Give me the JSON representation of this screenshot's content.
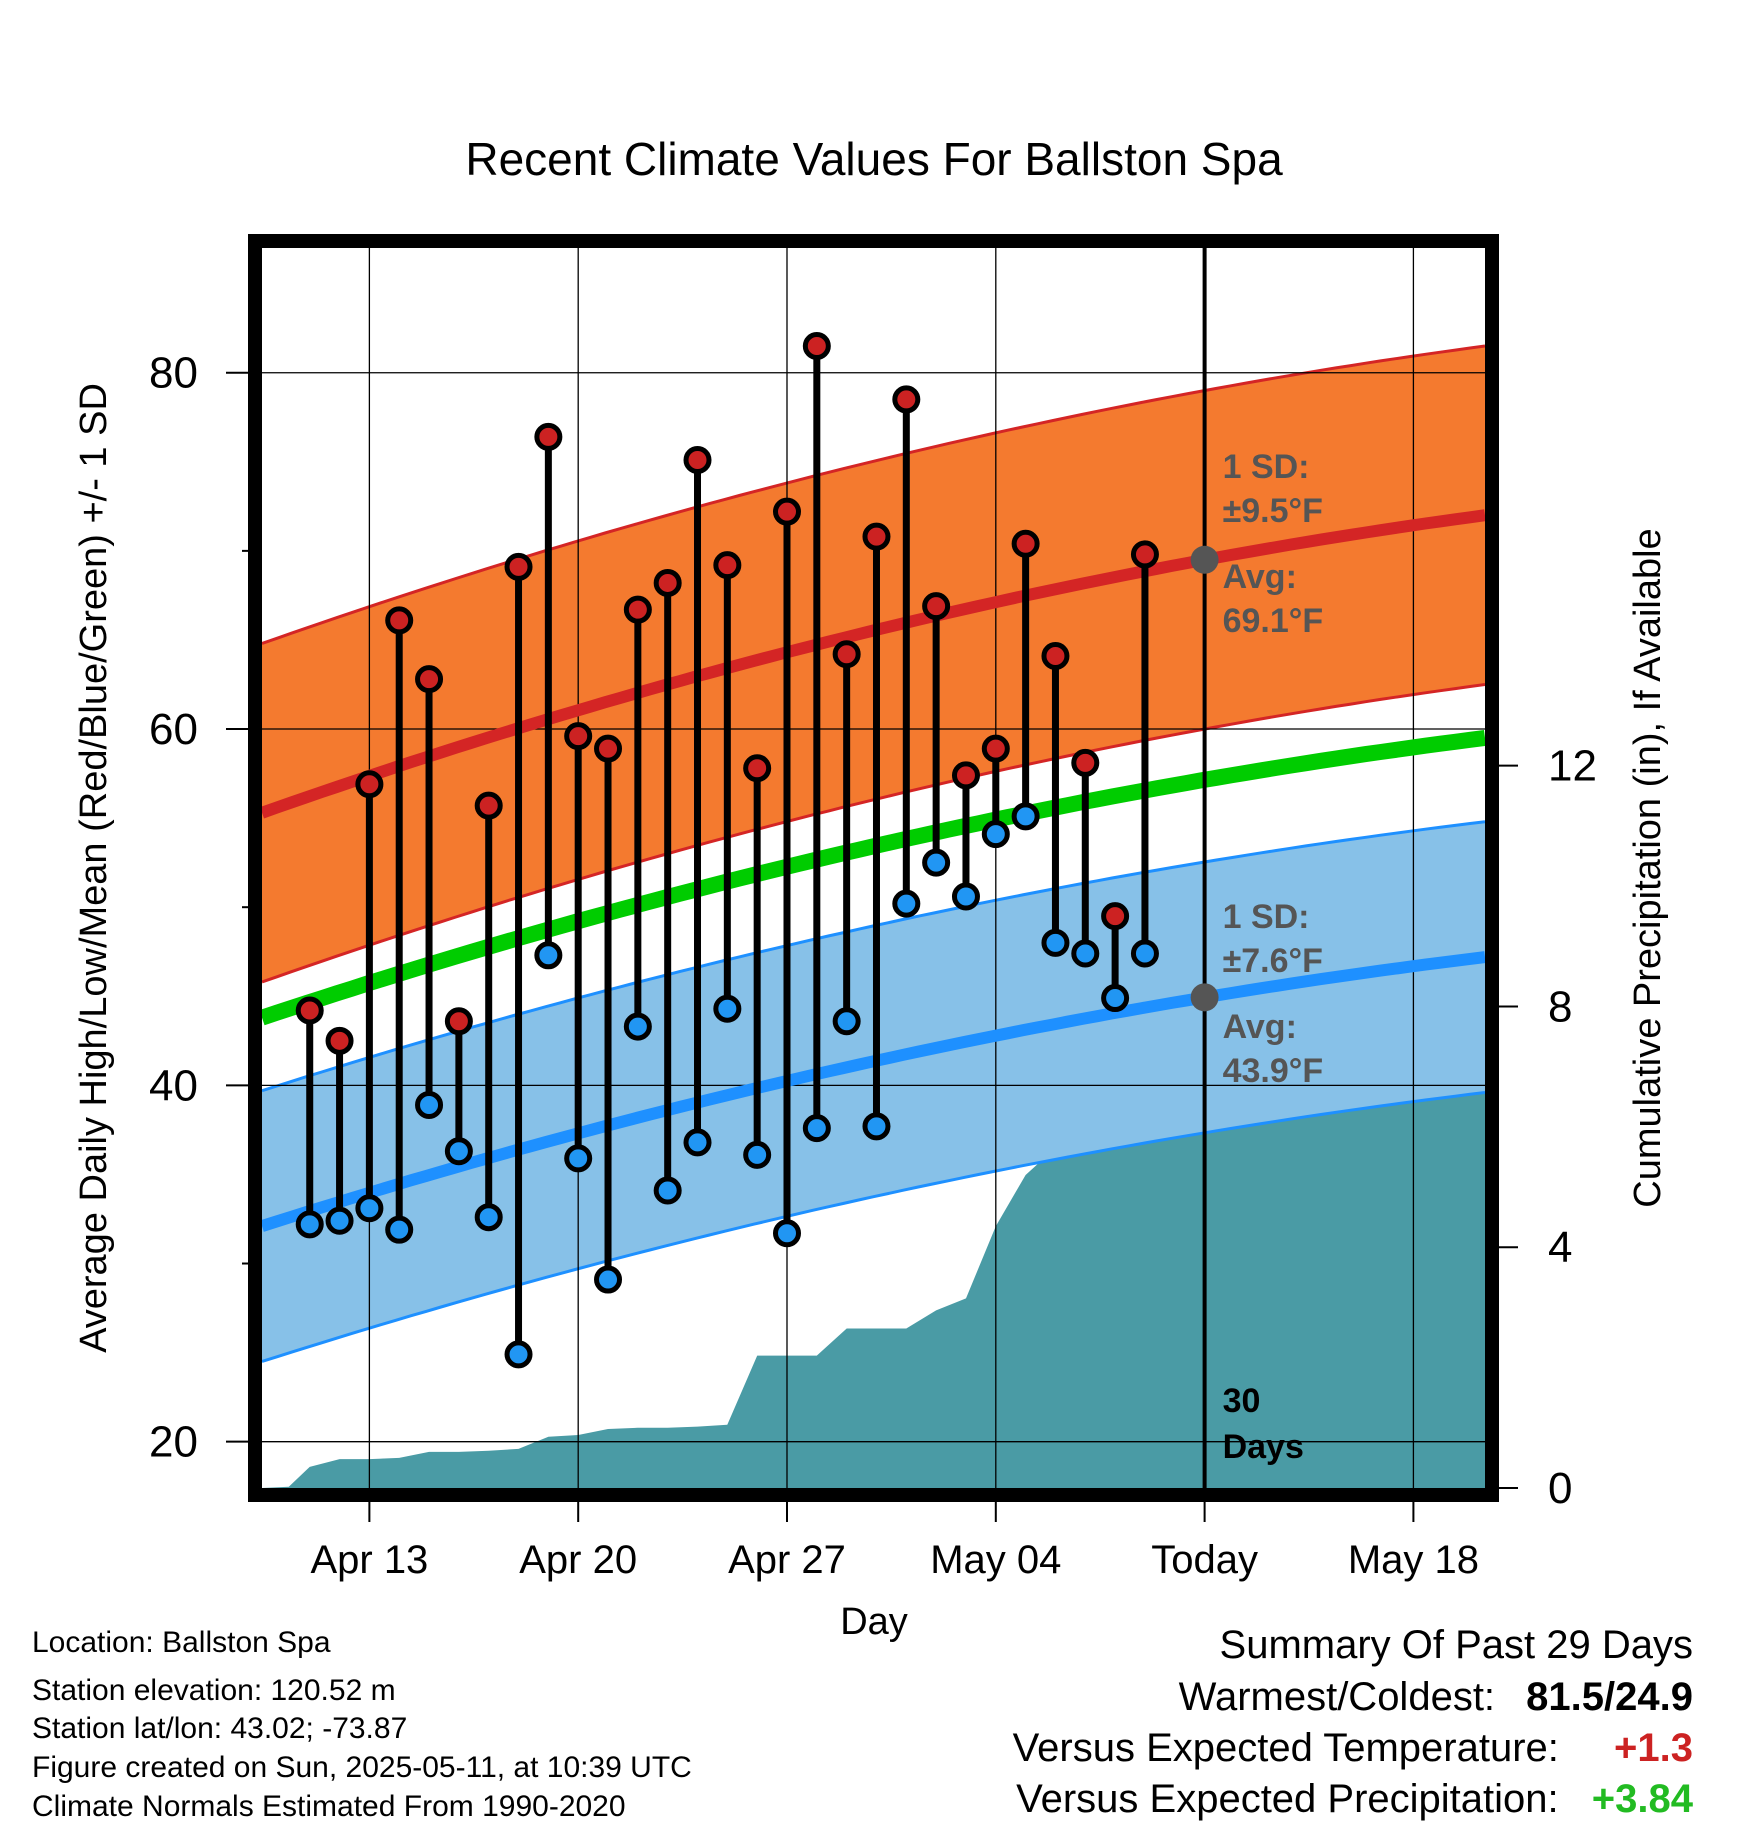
{
  "chart_data": {
    "type": "line",
    "title": "Recent Climate Values For Ballston Spa",
    "xlabel": "Day",
    "ylabel_left": "Average Daily High/Low/Mean (Red/Blue/Green) +/- 1 SD",
    "ylabel_right": "Cumulative Precipitation (in), If Available",
    "x_ticks": [
      {
        "day": 3,
        "label": "Apr 13"
      },
      {
        "day": 10,
        "label": "Apr 20"
      },
      {
        "day": 17,
        "label": "Apr 27"
      },
      {
        "day": 24,
        "label": "May 04"
      },
      {
        "day": 31,
        "label": "Today"
      },
      {
        "day": 38,
        "label": "May 18"
      }
    ],
    "xlim": [
      -0.6,
      40.4
    ],
    "ylim_left": [
      17.4,
      87
    ],
    "y_ticks_left": [
      20,
      40,
      60,
      80
    ],
    "y_minor_left": [
      30,
      50,
      70
    ],
    "ylim_right": [
      0,
      20.6
    ],
    "y_ticks_right": [
      0,
      4,
      8,
      12
    ],
    "grid": true,
    "daily_high": [
      44.2,
      42.5,
      56.9,
      66.1,
      62.8,
      43.6,
      55.7,
      69.1,
      76.4,
      59.6,
      58.9,
      66.7,
      68.2,
      75.1,
      69.2,
      57.8,
      72.2,
      81.5,
      64.2,
      70.8,
      78.5,
      66.9,
      57.4,
      58.9,
      70.4,
      64.1,
      58.1,
      49.5,
      69.8
    ],
    "daily_low": [
      32.2,
      32.4,
      33.1,
      31.9,
      38.9,
      36.3,
      32.6,
      24.9,
      47.3,
      35.9,
      29.1,
      43.3,
      34.1,
      36.8,
      44.3,
      36.1,
      31.7,
      37.6,
      43.6,
      37.7,
      50.2,
      52.5,
      50.6,
      54.1,
      55.1,
      48.0,
      47.4,
      44.9,
      47.4
    ],
    "normal_high": {
      "start": 55.3,
      "end": 72.0,
      "sd": 9.5
    },
    "normal_low": {
      "start": 32.1,
      "end": 47.2,
      "sd": 7.6
    },
    "normal_mean": {
      "start": 43.8,
      "end": 59.5
    },
    "cumulative_precip": [
      [
        -0.6,
        0
      ],
      [
        0.3,
        0.02
      ],
      [
        1.0,
        0.35
      ],
      [
        2.0,
        0.48
      ],
      [
        3.0,
        0.48
      ],
      [
        4.0,
        0.5
      ],
      [
        5.0,
        0.6
      ],
      [
        6.0,
        0.6
      ],
      [
        7.0,
        0.62
      ],
      [
        8.0,
        0.65
      ],
      [
        9.0,
        0.85
      ],
      [
        10.0,
        0.88
      ],
      [
        11.0,
        0.98
      ],
      [
        12.0,
        1.0
      ],
      [
        13.0,
        1.0
      ],
      [
        14.0,
        1.02
      ],
      [
        15.0,
        1.05
      ],
      [
        16.0,
        2.2
      ],
      [
        17.0,
        2.2
      ],
      [
        18.0,
        2.2
      ],
      [
        19.0,
        2.65
      ],
      [
        20.0,
        2.65
      ],
      [
        21.0,
        2.65
      ],
      [
        22.0,
        2.95
      ],
      [
        23.0,
        3.15
      ],
      [
        24.0,
        4.35
      ],
      [
        25.0,
        5.2
      ],
      [
        26.0,
        5.65
      ],
      [
        27.0,
        5.65
      ],
      [
        28.0,
        5.7
      ],
      [
        29.0,
        7.05
      ],
      [
        30.0,
        7.15
      ],
      [
        31.0,
        7.15
      ],
      [
        40.4,
        7.15
      ]
    ]
  },
  "annotations": {
    "high_sd_line1": "1 SD:",
    "high_sd_line2": "±9.5°F",
    "high_avg_line1": "Avg:",
    "high_avg_line2": "69.1°F",
    "low_sd_line1": "1 SD:",
    "low_sd_line2": "±7.6°F",
    "low_avg_line1": "Avg:",
    "low_avg_line2": "43.9°F",
    "days_line1": "30",
    "days_line2": "Days"
  },
  "footer": {
    "location": "Location: Ballston Spa",
    "elevation": "Station elevation: 120.52 m",
    "latlon": "Station lat/lon: 43.02; -73.87",
    "created": "Figure created on Sun, 2025-05-11, at 10:39 UTC",
    "normals": "Climate Normals Estimated From 1990-2020"
  },
  "summary": {
    "title": "Summary Of Past 29 Days",
    "warmest_label": "Warmest/Coldest:",
    "warmest_value": "81.5/24.9",
    "temp_label": "Versus Expected Temperature:",
    "temp_value": "+1.3",
    "precip_label": "Versus Expected Precipitation:",
    "precip_value": "+3.84"
  },
  "colors": {
    "high_band": "#f47a2f",
    "high_line": "#d42525",
    "low_band": "#87c1e8",
    "low_line": "#1e90ff",
    "mean_line": "#00cc00",
    "precip": "#4a9ba5",
    "high_marker": "#cc2222",
    "low_marker": "#2196f3",
    "annotation": "#555555",
    "temp_value": "#cc2222",
    "precip_value": "#22bb22"
  }
}
